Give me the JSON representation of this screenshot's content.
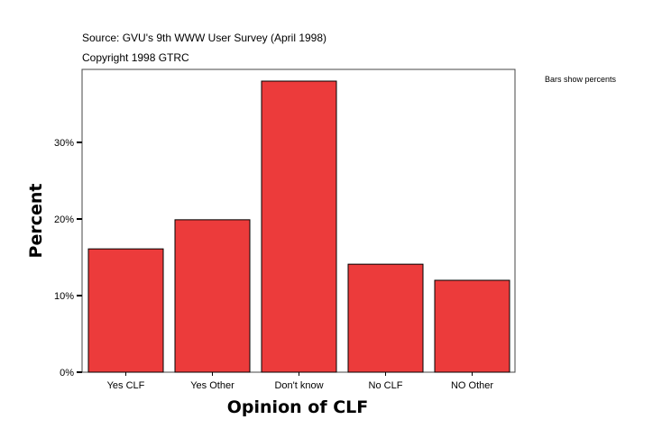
{
  "chart_data": {
    "type": "bar",
    "subtitle_lines": [
      "Source: GVU's 9th WWW User Survey (April 1998)",
      "Copyright 1998 GTRC"
    ],
    "note": "Bars show percents",
    "xlabel": "Opinion of CLF",
    "ylabel": "Percent",
    "categories": [
      "Yes CLF",
      "Yes Other",
      "Don't know",
      "No CLF",
      "NO Other"
    ],
    "values": [
      16.1,
      19.9,
      38.0,
      14.1,
      12.0
    ],
    "yticks": [
      0,
      10,
      20,
      30
    ],
    "ytick_labels": [
      "0%",
      "10%",
      "20%",
      "30%"
    ],
    "ylim": [
      0,
      39.5
    ],
    "grid": false,
    "bar_color": "#ec3b3b"
  }
}
